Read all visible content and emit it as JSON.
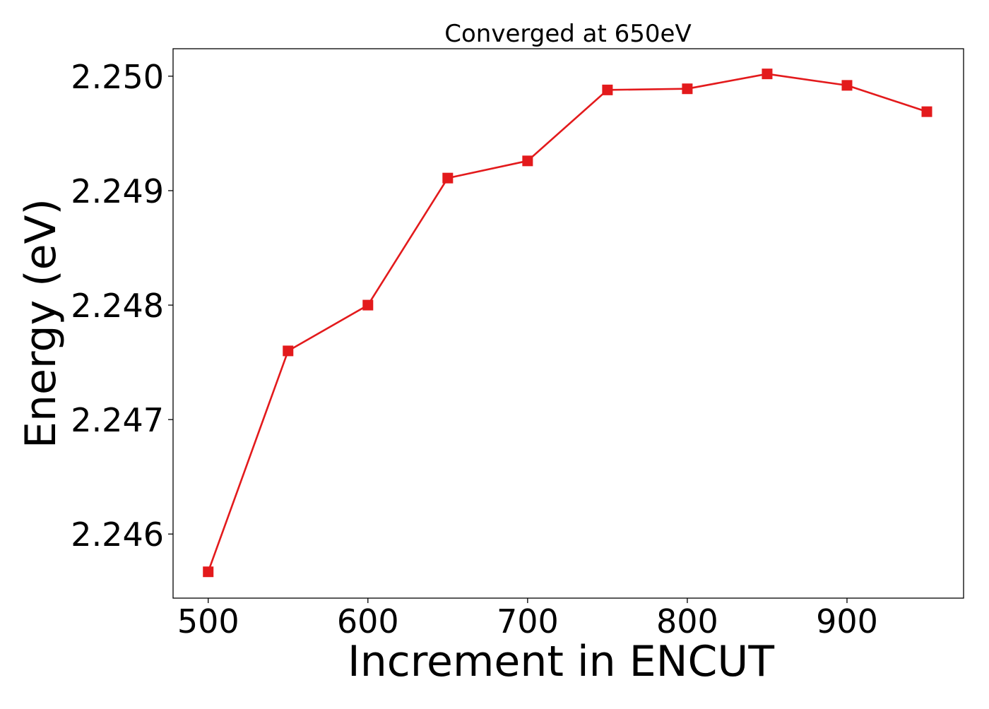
{
  "chart_data": {
    "type": "line",
    "title": "Converged at 650eV",
    "xlabel": "Increment in ENCUT",
    "ylabel": "Energy (eV)",
    "xlim": [
      478,
      973
    ],
    "ylim": [
      2.24544,
      2.25024
    ],
    "xticks": [
      500,
      600,
      700,
      800,
      900
    ],
    "xtick_labels": [
      "500",
      "600",
      "700",
      "800",
      "900"
    ],
    "yticks": [
      2.246,
      2.247,
      2.248,
      2.249,
      2.25
    ],
    "ytick_labels": [
      "2.246",
      "2.247",
      "2.248",
      "2.249",
      "2.250"
    ],
    "grid": false,
    "legend": "none",
    "series": [
      {
        "color": "#e31a1c",
        "marker": "square",
        "x": [
          500,
          550,
          600,
          650,
          700,
          750,
          800,
          850,
          900,
          950
        ],
        "y": [
          2.24567,
          2.2476,
          2.248,
          2.24911,
          2.24926,
          2.24988,
          2.24989,
          2.25002,
          2.24992,
          2.24969
        ]
      }
    ]
  }
}
